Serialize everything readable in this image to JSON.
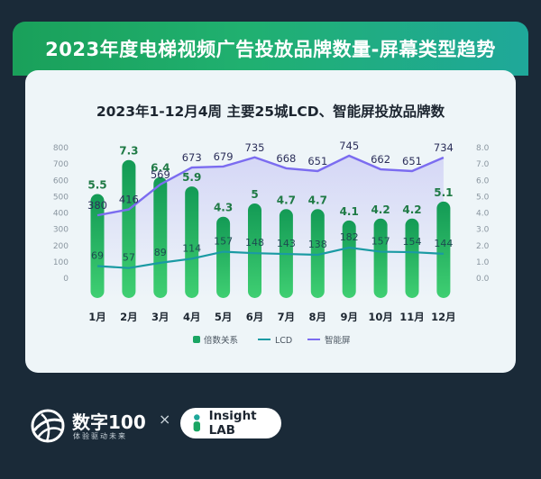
{
  "banner": {
    "title": "2023年度电梯视频广告投放品牌数量-屏幕类型趋势"
  },
  "chart_data": {
    "type": "bar",
    "title": "2023年1-12月4周 主要25城LCD、智能屏投放品牌数",
    "categories": [
      "1月",
      "2月",
      "3月",
      "4月",
      "5月",
      "6月",
      "7月",
      "8月",
      "9月",
      "10月",
      "11月",
      "12月"
    ],
    "series": [
      {
        "name": "倍数关系",
        "kind": "bar",
        "axis": "right",
        "color": "#1aa563",
        "values": [
          5.5,
          7.3,
          6.4,
          5.9,
          4.3,
          5.0,
          4.7,
          4.7,
          4.1,
          4.2,
          4.2,
          5.1
        ]
      },
      {
        "name": "LCD",
        "kind": "line",
        "axis": "left",
        "color": "#1a9aa3",
        "values": [
          69,
          57,
          89,
          114,
          157,
          148,
          143,
          138,
          182,
          157,
          154,
          144
        ]
      },
      {
        "name": "智能屏",
        "kind": "line",
        "axis": "left",
        "color": "#7b6cf0",
        "values": [
          380,
          416,
          569,
          673,
          679,
          735,
          668,
          651,
          745,
          662,
          651,
          734
        ]
      }
    ],
    "left_axis": {
      "ticks": [
        "800",
        "700",
        "600",
        "500",
        "400",
        "300",
        "200",
        "100",
        "0"
      ]
    },
    "right_axis": {
      "ticks": [
        "8.0",
        "7.0",
        "6.0",
        "5.0",
        "4.0",
        "3.0",
        "2.0",
        "1.0",
        "0.0"
      ]
    },
    "grid": false,
    "legend_position": "bottom"
  },
  "footer": {
    "logo_name": "数字100",
    "logo_tagline": "体验驱动未来",
    "separator": "×",
    "partner": "Insight LAB"
  },
  "colors": {
    "background": "#1a2a38",
    "panel": "#eef5f8",
    "bar": "#1aa563",
    "lcd": "#1a9aa3",
    "smart": "#7b6cf0"
  }
}
